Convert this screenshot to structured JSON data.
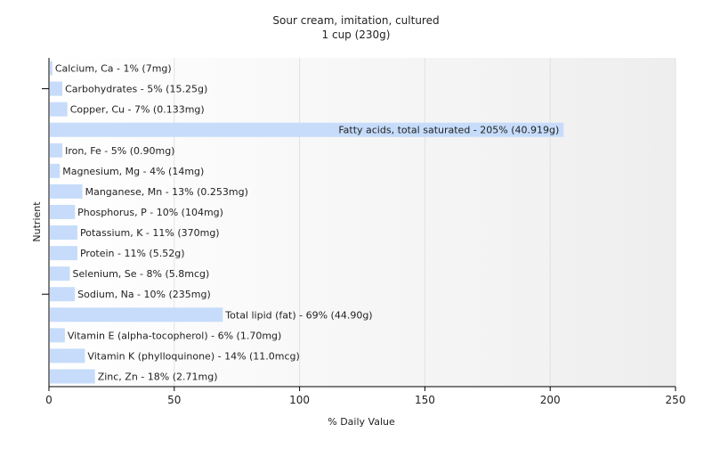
{
  "chart_data": {
    "type": "bar",
    "orientation": "horizontal",
    "title": "Sour cream, imitation, cultured",
    "subtitle": "1 cup (230g)",
    "xlabel": "% Daily Value",
    "ylabel": "Nutrient",
    "xlim": [
      0,
      250
    ],
    "xticks": [
      0,
      50,
      100,
      150,
      200,
      250
    ],
    "grid": true,
    "bar_color": "#c6dcfa",
    "categories": [
      "Calcium, Ca",
      "Carbohydrates",
      "Copper, Cu",
      "Fatty acids, total saturated",
      "Iron, Fe",
      "Magnesium, Mg",
      "Manganese, Mn",
      "Phosphorus, P",
      "Potassium, K",
      "Protein",
      "Selenium, Se",
      "Sodium, Na",
      "Total lipid (fat)",
      "Vitamin E (alpha-tocopherol)",
      "Vitamin K (phylloquinone)",
      "Zinc, Zn"
    ],
    "values": [
      1,
      5,
      7,
      205,
      5,
      4,
      13,
      10,
      11,
      11,
      8,
      10,
      69,
      6,
      14,
      18
    ],
    "labels": [
      "Calcium, Ca - 1% (7mg)",
      "Carbohydrates - 5% (15.25g)",
      "Copper, Cu - 7% (0.133mg)",
      "Fatty acids, total saturated - 205% (40.919g)",
      "Iron, Fe - 5% (0.90mg)",
      "Magnesium, Mg - 4% (14mg)",
      "Manganese, Mn - 13% (0.253mg)",
      "Phosphorus, P - 10% (104mg)",
      "Potassium, K - 11% (370mg)",
      "Protein - 11% (5.52g)",
      "Selenium, Se - 8% (5.8mcg)",
      "Sodium, Na - 10% (235mg)",
      "Total lipid (fat) - 69% (44.90g)",
      "Vitamin E (alpha-tocopherol) - 6% (1.70mg)",
      "Vitamin K (phylloquinone) - 14% (11.0mcg)",
      "Zinc, Zn - 18% (2.71mg)"
    ]
  }
}
